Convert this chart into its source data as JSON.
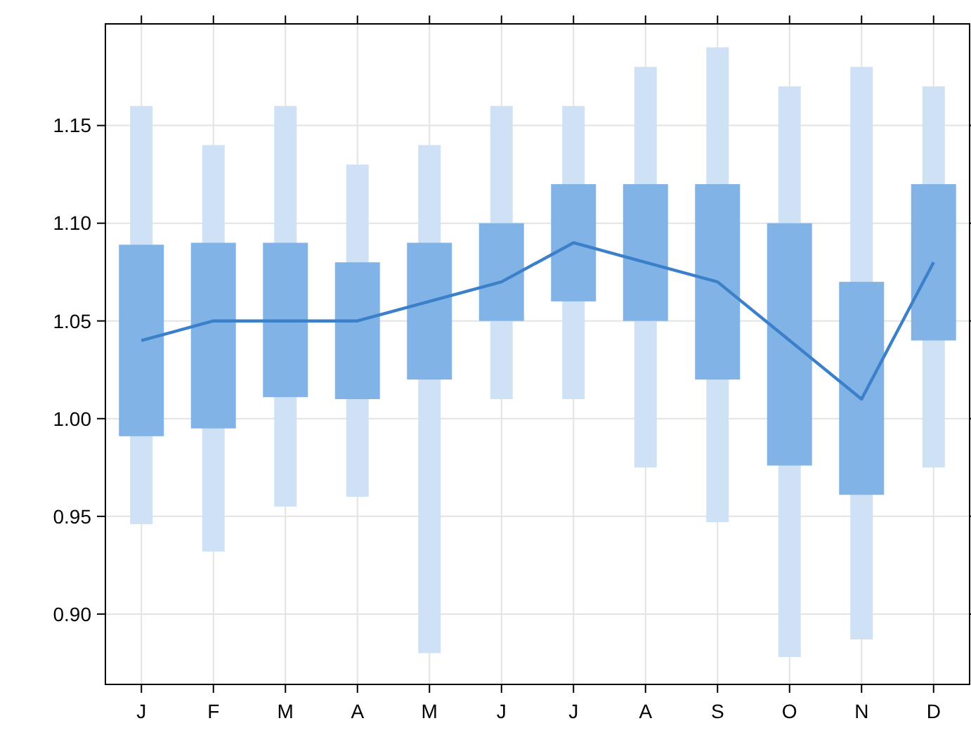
{
  "chart_data": {
    "type": "bar",
    "categories": [
      "J",
      "F",
      "M",
      "A",
      "M",
      "J",
      "J",
      "A",
      "S",
      "O",
      "N",
      "D"
    ],
    "series": [
      {
        "color": "#cfe2f5",
        "base": [
          0.946,
          0.932,
          0.955,
          0.96,
          0.88,
          1.01,
          1.01,
          0.975,
          0.947,
          0.878,
          0.887,
          0.975
        ],
        "values": [
          0.214,
          0.208,
          0.205,
          0.17,
          0.26,
          0.15,
          0.15,
          0.205,
          0.243,
          0.292,
          0.293,
          0.195
        ]
      },
      {
        "color": "#82b3e6",
        "base": [
          0.991,
          0.995,
          1.011,
          1.01,
          1.02,
          1.05,
          1.06,
          1.05,
          1.02,
          0.976,
          0.961,
          1.04
        ],
        "values": [
          0.098,
          0.095,
          0.079,
          0.07,
          0.07,
          0.05,
          0.06,
          0.07,
          0.1,
          0.124,
          0.109,
          0.08
        ]
      },
      {
        "type": "line",
        "color": "#3b80c9",
        "values": [
          1.04,
          1.05,
          1.05,
          1.05,
          1.06,
          1.07,
          1.09,
          1.08,
          1.07,
          1.04,
          1.01,
          1.08
        ]
      }
    ],
    "ylim": [
      0.864,
      1.202
    ],
    "yticks": [
      {
        "value": 0.9,
        "label": "0.90"
      },
      {
        "value": 0.95,
        "label": "0.95"
      },
      {
        "value": 1.0,
        "label": "1.00"
      },
      {
        "value": 1.05,
        "label": "1.05"
      },
      {
        "value": 1.1,
        "label": "1.10"
      },
      {
        "value": 1.15,
        "label": "1.15"
      }
    ],
    "grid": true,
    "marker": "none"
  }
}
